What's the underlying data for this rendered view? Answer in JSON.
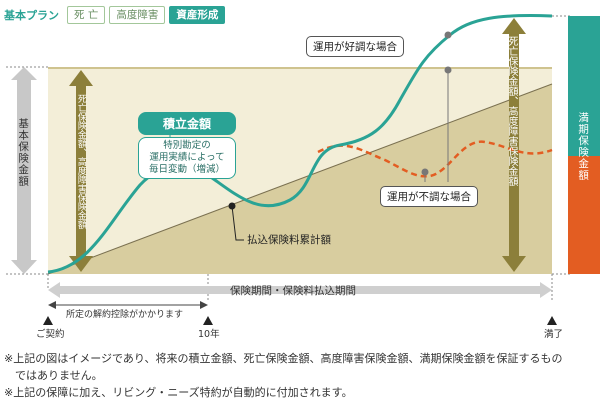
{
  "plan": {
    "label": "基本プラン",
    "tabs": [
      {
        "label": "死 亡",
        "active": false
      },
      {
        "label": "高度障害",
        "active": false
      },
      {
        "label": "資産形成",
        "active": true
      }
    ]
  },
  "labels": {
    "basic_insurance": "基本保険金額",
    "death_disability_left": "死亡保険金額、高度障害保険金額",
    "accumulation_title": "積立金額",
    "accumulation_desc": [
      "特別勘定の",
      "運用実績によって",
      "毎日変動（増減）"
    ],
    "good_performance": "運用が好調な場合",
    "poor_performance": "運用が不調な場合",
    "paid_premium_total": "払込保険料累計額",
    "death_disability_right": "死亡保険金額、高度障害保険金額",
    "maturity": "満期保険金額",
    "period": "保険期間・保険料払込期間",
    "surrender_deduction": "所定の解約控除がかかります",
    "contract": "ご契約",
    "year10": "10年",
    "maturity_point": "満了"
  },
  "notes": [
    "※上記の図はイメージであり、将来の積立金額、死亡保険金額、高度障害保険金額、満期保険金額を保証するもの",
    "　ではありません。",
    "※上記の保障に加え、リビング・ニーズ特約が自動的に付加されます。"
  ],
  "colors": {
    "teal": "#2aa395",
    "olive": "#8c7f3a",
    "beige_light": "#efe7c9",
    "beige_area": "#d9cfa4",
    "orange": "#e35d22",
    "gray_arrow": "#c8c8c8"
  }
}
